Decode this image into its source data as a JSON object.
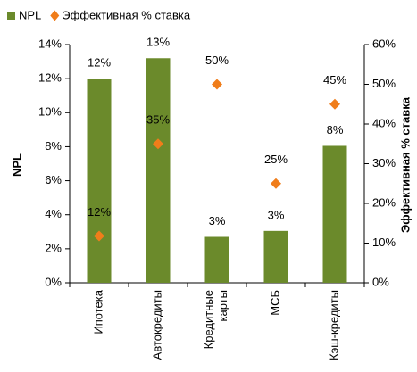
{
  "chart_data": {
    "type": "bar",
    "categories": [
      "Ипотека",
      "Автокредиты",
      "Кредитные карты",
      "МСБ",
      "Кэш-кредиты"
    ],
    "series": [
      {
        "name": "NPL",
        "color": "#6b8a2b",
        "values": [
          12,
          13.2,
          2.7,
          3.05,
          8.05
        ],
        "value_labels": [
          "12%",
          "13%",
          "3%",
          "3%",
          "8%"
        ]
      },
      {
        "name": "Эффективная % ставка",
        "type": "scatter",
        "axis": "y2",
        "color": "#f07d1a",
        "values": [
          11.8,
          35,
          50,
          25,
          45
        ],
        "value_labels": [
          "12%",
          "35%",
          "50%",
          "25%",
          "45%"
        ]
      }
    ],
    "ylabel": "NPL",
    "y2label": "Эффективная % ставка",
    "ylim": [
      0,
      14
    ],
    "yticks": [
      {
        "value": 0,
        "label": "0%"
      },
      {
        "value": 2,
        "label": "2%"
      },
      {
        "value": 4,
        "label": "4%"
      },
      {
        "value": 6,
        "label": "6%"
      },
      {
        "value": 8,
        "label": "8%"
      },
      {
        "value": 10,
        "label": "10%"
      },
      {
        "value": 12,
        "label": "12%"
      },
      {
        "value": 14,
        "label": "14%"
      }
    ],
    "y2lim": [
      0,
      60
    ],
    "y2ticks": [
      {
        "value": 0,
        "label": "0%"
      },
      {
        "value": 10,
        "label": "10%"
      },
      {
        "value": 20,
        "label": "20%"
      },
      {
        "value": 30,
        "label": "30%"
      },
      {
        "value": 40,
        "label": "40%"
      },
      {
        "value": 50,
        "label": "50%"
      },
      {
        "value": 60,
        "label": "60%"
      }
    ],
    "legend": "top"
  }
}
